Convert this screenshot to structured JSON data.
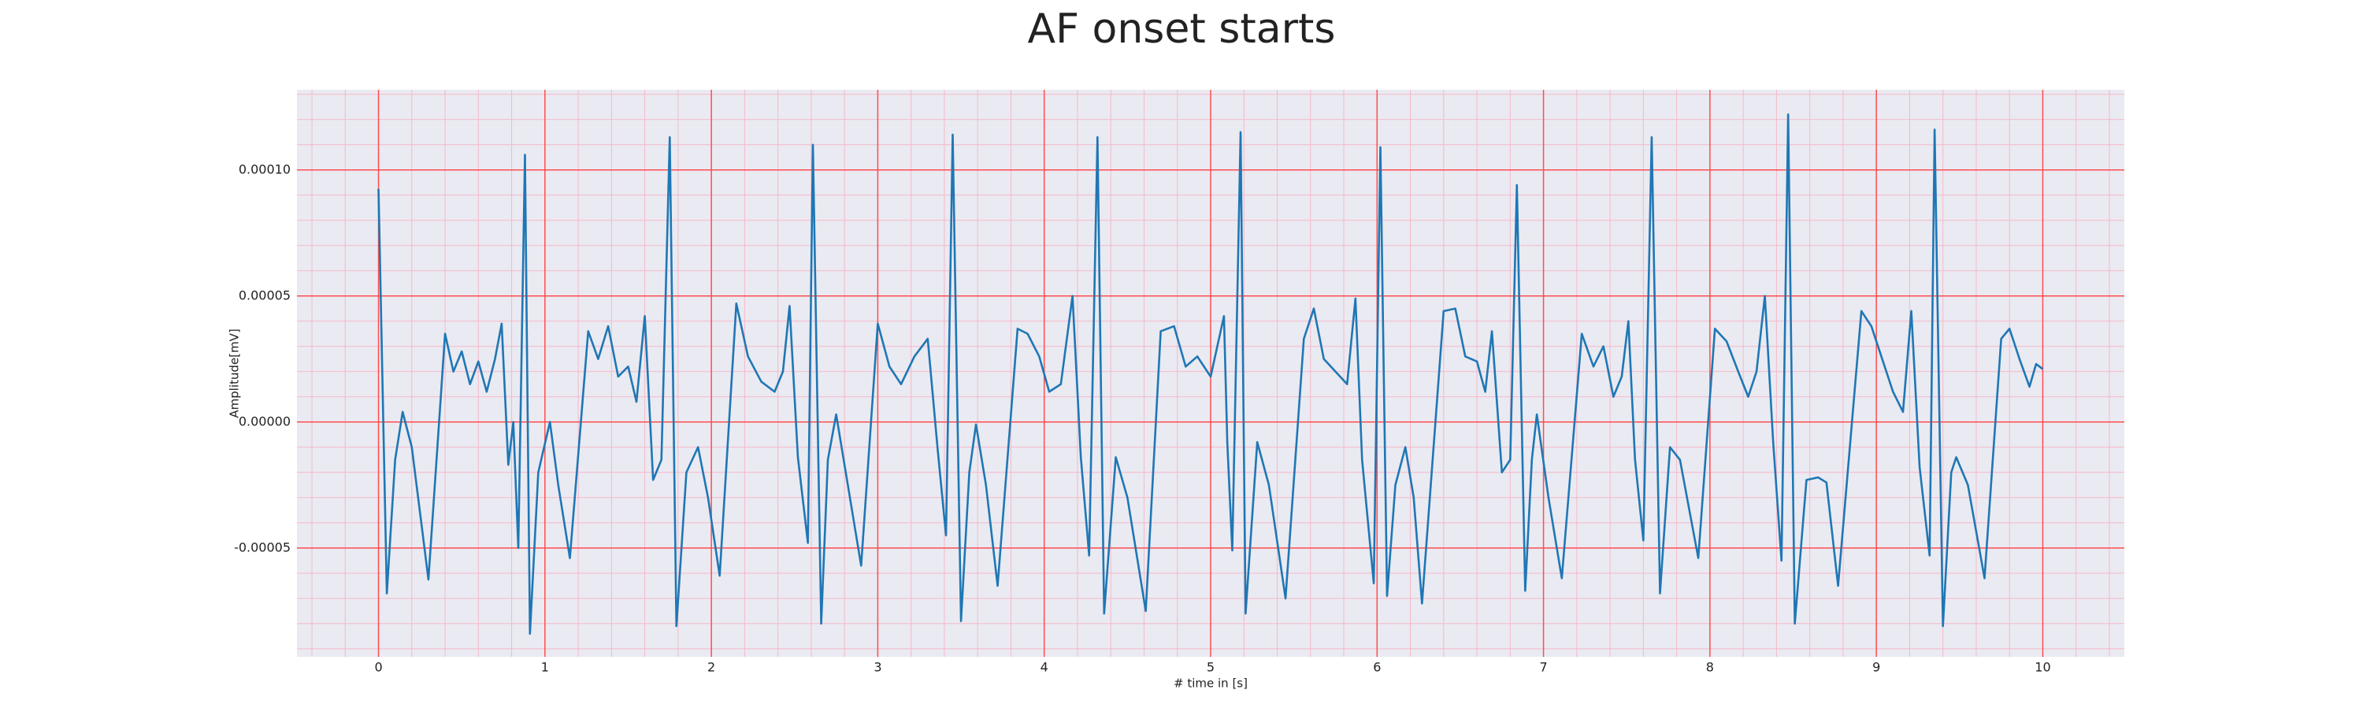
{
  "chart_data": {
    "type": "line",
    "title": "AF onset starts",
    "x_label": "# time in [s]",
    "y_label": "Amplitude[mV]",
    "color": "#1f77b4",
    "background": "#eaeaf2",
    "grid": true,
    "grid_color": "#ff4d4d",
    "minor_grid": {
      "x_step": 0.2,
      "y_step": 1e-05,
      "color": "#f6b8c8"
    },
    "xlim": [
      -0.49,
      10.49
    ],
    "ylim": [
      -9.32e-05,
      0.0001318
    ],
    "xticks": [
      0,
      1,
      2,
      3,
      4,
      5,
      6,
      7,
      8,
      9,
      10
    ],
    "yticks": [
      {
        "value": -5e-05,
        "label": "-0.00005"
      },
      {
        "value": 0,
        "label": "0.00000"
      },
      {
        "value": 5e-05,
        "label": "0.00005"
      },
      {
        "value": 0.0001,
        "label": "0.00010"
      }
    ],
    "x": [
      0.0,
      0.05,
      0.1,
      0.145,
      0.2,
      0.3,
      0.4,
      0.45,
      0.5,
      0.55,
      0.6,
      0.65,
      0.7,
      0.74,
      0.78,
      0.81,
      0.84,
      0.88,
      0.91,
      0.96,
      1.03,
      1.08,
      1.15,
      1.26,
      1.32,
      1.38,
      1.44,
      1.5,
      1.55,
      1.6,
      1.65,
      1.7,
      1.75,
      1.79,
      1.85,
      1.92,
      1.98,
      2.05,
      2.15,
      2.22,
      2.3,
      2.38,
      2.43,
      2.47,
      2.52,
      2.58,
      2.61,
      2.66,
      2.7,
      2.75,
      2.82,
      2.9,
      3.0,
      3.07,
      3.14,
      3.22,
      3.3,
      3.36,
      3.41,
      3.45,
      3.5,
      3.55,
      3.59,
      3.65,
      3.72,
      3.84,
      3.9,
      3.97,
      4.03,
      4.1,
      4.17,
      4.22,
      4.27,
      4.32,
      4.36,
      4.43,
      4.5,
      4.61,
      4.7,
      4.78,
      4.85,
      4.92,
      5.0,
      5.08,
      5.1,
      5.13,
      5.18,
      5.21,
      5.28,
      5.35,
      5.45,
      5.56,
      5.62,
      5.68,
      5.75,
      5.82,
      5.87,
      5.91,
      5.98,
      6.02,
      6.06,
      6.11,
      6.17,
      6.22,
      6.27,
      6.4,
      6.47,
      6.53,
      6.6,
      6.65,
      6.69,
      6.75,
      6.8,
      6.84,
      6.89,
      6.93,
      6.96,
      7.03,
      7.11,
      7.23,
      7.3,
      7.36,
      7.42,
      7.47,
      7.51,
      7.55,
      7.6,
      7.65,
      7.7,
      7.76,
      7.82,
      7.93,
      8.03,
      8.1,
      8.17,
      8.23,
      8.28,
      8.33,
      8.38,
      8.43,
      8.47,
      8.51,
      8.58,
      8.65,
      8.7,
      8.77,
      8.91,
      8.97,
      9.03,
      9.1,
      9.16,
      9.21,
      9.26,
      9.32,
      9.35,
      9.4,
      9.45,
      9.48,
      9.55,
      9.65,
      9.75,
      9.8,
      9.86,
      9.92,
      9.96,
      10.0
    ],
    "values": [
      9.25e-05,
      -6.8e-05,
      -1.5e-05,
      4e-06,
      -1e-05,
      -6.25e-05,
      3.5e-05,
      2e-05,
      2.8e-05,
      1.5e-05,
      2.4e-05,
      1.2e-05,
      2.5e-05,
      3.9e-05,
      -1.7e-05,
      0.0,
      -5e-05,
      0.000106,
      -8.4e-05,
      -2e-05,
      0.0,
      -2.5e-05,
      -5.4e-05,
      3.6e-05,
      2.5e-05,
      3.8e-05,
      1.8e-05,
      2.2e-05,
      8e-06,
      4.2e-05,
      -2.3e-05,
      -1.5e-05,
      0.000113,
      -8.1e-05,
      -2e-05,
      -1e-05,
      -3e-05,
      -6.1e-05,
      4.7e-05,
      2.6e-05,
      1.6e-05,
      1.2e-05,
      2e-05,
      4.6e-05,
      -1.4e-05,
      -4.8e-05,
      0.00011,
      -8e-05,
      -1.5e-05,
      3e-06,
      -2.5e-05,
      -5.7e-05,
      3.9e-05,
      2.2e-05,
      1.5e-05,
      2.6e-05,
      3.3e-05,
      -1.1e-05,
      -4.5e-05,
      0.000114,
      -7.9e-05,
      -2e-05,
      -1e-06,
      -2.5e-05,
      -6.5e-05,
      3.7e-05,
      3.5e-05,
      2.6e-05,
      1.2e-05,
      1.5e-05,
      5e-05,
      -1.4e-05,
      -5.3e-05,
      0.000113,
      -7.6e-05,
      -1.4e-05,
      -3e-05,
      -7.5e-05,
      3.6e-05,
      3.8e-05,
      2.2e-05,
      2.6e-05,
      1.8e-05,
      4.2e-05,
      -8e-06,
      -5.1e-05,
      0.000115,
      -7.6e-05,
      -8e-06,
      -2.5e-05,
      -7e-05,
      3.3e-05,
      4.5e-05,
      2.5e-05,
      2e-05,
      1.5e-05,
      4.9e-05,
      -1.5e-05,
      -6.4e-05,
      0.000109,
      -6.9e-05,
      -2.5e-05,
      -1e-05,
      -3e-05,
      -7.2e-05,
      4.4e-05,
      4.5e-05,
      2.6e-05,
      2.4e-05,
      1.2e-05,
      3.6e-05,
      -2e-05,
      -1.5e-05,
      9.4e-05,
      -6.7e-05,
      -1.5e-05,
      3e-06,
      -3e-05,
      -6.2e-05,
      3.5e-05,
      2.2e-05,
      3e-05,
      1e-05,
      1.8e-05,
      4e-05,
      -1.5e-05,
      -4.7e-05,
      0.000113,
      -6.8e-05,
      -1e-05,
      -1.5e-05,
      -5.4e-05,
      3.7e-05,
      3.2e-05,
      2e-05,
      1e-05,
      2e-05,
      5e-05,
      -8e-06,
      -5.5e-05,
      0.000122,
      -8e-05,
      -2.3e-05,
      -2.2e-05,
      -2.4e-05,
      -6.5e-05,
      4.4e-05,
      3.8e-05,
      2.6e-05,
      1.2e-05,
      4e-06,
      4.4e-05,
      -1.8e-05,
      -5.3e-05,
      0.000116,
      -8.1e-05,
      -2e-05,
      -1.4e-05,
      -2.5e-05,
      -6.2e-05,
      3.3e-05,
      3.7e-05,
      2.5e-05,
      1.4e-05,
      2.3e-05,
      2.1e-05
    ]
  }
}
